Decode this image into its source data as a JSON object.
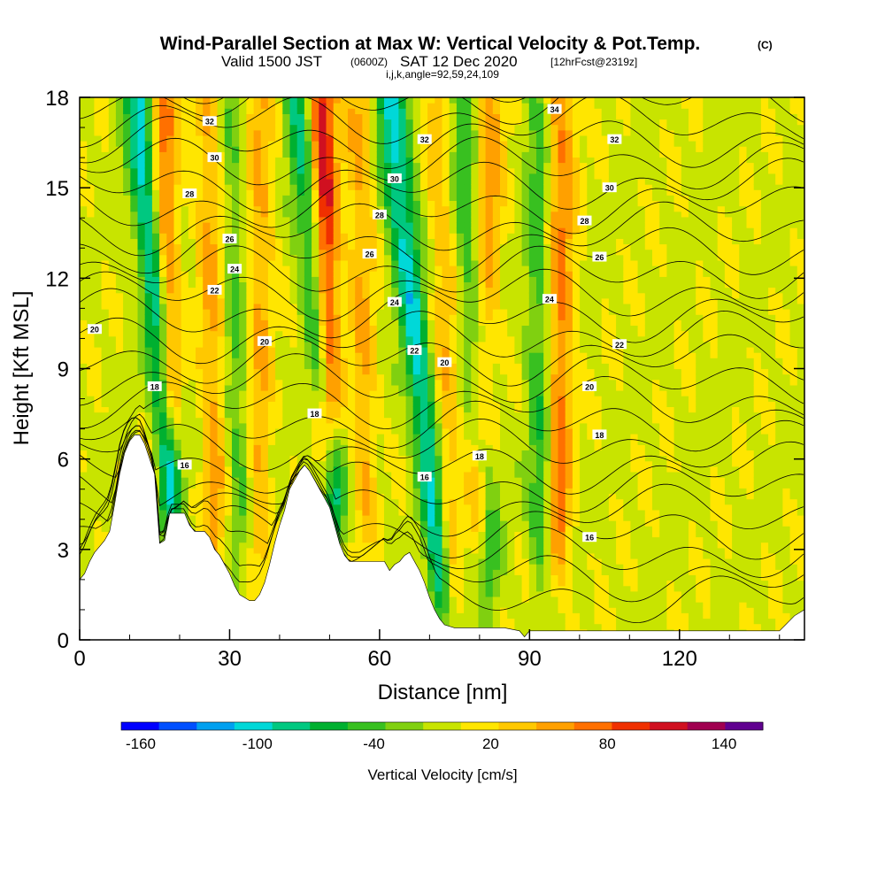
{
  "title": {
    "main": "Wind-Parallel Section at Max W: Vertical Velocity & Pot.Temp.",
    "main_suffix": "(C)",
    "valid_prefix": "Valid 1500 JST",
    "valid_utc": "(0600Z)",
    "valid_date": "SAT 12 Dec 2020",
    "forecast_info": "[12hrFcst@2319z]",
    "indices": "i,j,k,angle=92,59,24,109"
  },
  "chart_data": {
    "type": "heatmap",
    "xlabel": "Distance [nm]",
    "ylabel": "Height [Kft MSL]",
    "xlim": [
      0,
      145
    ],
    "ylim": [
      0,
      18
    ],
    "x_ticks": [
      0,
      30,
      60,
      90,
      120
    ],
    "y_ticks": [
      0,
      3,
      6,
      9,
      12,
      15,
      18
    ],
    "colorbar": {
      "title": "Vertical Velocity [cm/s]",
      "tick_labels": [
        "-160",
        "-100",
        "-40",
        "20",
        "80",
        "140"
      ],
      "tick_values": [
        -160,
        -100,
        -40,
        20,
        80,
        140
      ],
      "range": [
        -170,
        160
      ],
      "colors": [
        "#0000ff",
        "#0050ff",
        "#00a0f0",
        "#00d8d8",
        "#00c880",
        "#00b030",
        "#38c020",
        "#80d010",
        "#c8e400",
        "#ffe600",
        "#ffc800",
        "#ffa000",
        "#ff7000",
        "#f03000",
        "#d01020",
        "#a00050",
        "#600090"
      ]
    },
    "updrafts": [
      {
        "x": 16,
        "x0": 18,
        "y0": 8.5,
        "peak": 90
      },
      {
        "x": 48,
        "x0": 50,
        "y0": 8.0,
        "peak": 130
      },
      {
        "x": 36,
        "x0": 36,
        "y0": 4.0,
        "peak": 45
      },
      {
        "x": 82,
        "x0": 80,
        "y0": 5.0,
        "peak": 60
      },
      {
        "x": 96,
        "x0": 96,
        "y0": 4.0,
        "peak": 70
      },
      {
        "x": 26,
        "x0": 27,
        "y0": 4.0,
        "peak": 50
      },
      {
        "x": 56,
        "x0": 57,
        "y0": 5.0,
        "peak": 45
      },
      {
        "x": 72,
        "x0": 74,
        "y0": 3.0,
        "peak": 40
      }
    ],
    "downdrafts": [
      {
        "x": 12,
        "x0": 18,
        "y0": 5.5,
        "peak": -110
      },
      {
        "x": 44,
        "x0": 51,
        "y0": 5.0,
        "peak": -90
      },
      {
        "x": 62,
        "x0": 72,
        "y0": 2.5,
        "peak": -100
      },
      {
        "x": 92,
        "x0": 92,
        "y0": 4.0,
        "peak": -50
      },
      {
        "x": 30,
        "x0": 32,
        "y0": 5.0,
        "peak": -40
      },
      {
        "x": 76,
        "x0": 82,
        "y0": 3.0,
        "peak": -55
      }
    ],
    "terrain": [
      [
        0,
        2.0
      ],
      [
        1,
        2.2
      ],
      [
        2,
        2.6
      ],
      [
        3,
        2.9
      ],
      [
        4,
        3.1
      ],
      [
        5,
        3.3
      ],
      [
        6,
        3.6
      ],
      [
        7,
        4.5
      ],
      [
        8,
        5.5
      ],
      [
        9,
        6.2
      ],
      [
        10,
        6.6
      ],
      [
        11,
        6.8
      ],
      [
        12,
        6.8
      ],
      [
        13,
        6.5
      ],
      [
        14,
        6.0
      ],
      [
        15,
        5.5
      ],
      [
        16,
        3.2
      ],
      [
        17,
        3.3
      ],
      [
        18,
        4.2
      ],
      [
        19,
        4.2
      ],
      [
        20,
        4.2
      ],
      [
        21,
        4.2
      ],
      [
        22,
        3.8
      ],
      [
        23,
        3.6
      ],
      [
        24,
        3.6
      ],
      [
        25,
        3.6
      ],
      [
        26,
        3.4
      ],
      [
        27,
        3.0
      ],
      [
        28,
        2.8
      ],
      [
        29,
        2.5
      ],
      [
        30,
        2.2
      ],
      [
        31,
        1.8
      ],
      [
        32,
        1.5
      ],
      [
        33,
        1.4
      ],
      [
        34,
        1.3
      ],
      [
        35,
        1.3
      ],
      [
        36,
        1.5
      ],
      [
        37,
        1.9
      ],
      [
        38,
        2.5
      ],
      [
        39,
        3.2
      ],
      [
        40,
        3.8
      ],
      [
        41,
        4.3
      ],
      [
        42,
        5.0
      ],
      [
        43,
        5.3
      ],
      [
        44,
        5.6
      ],
      [
        45,
        5.8
      ],
      [
        46,
        5.6
      ],
      [
        47,
        5.3
      ],
      [
        48,
        5.0
      ],
      [
        49,
        4.7
      ],
      [
        50,
        4.4
      ],
      [
        51,
        3.8
      ],
      [
        52,
        3.2
      ],
      [
        53,
        2.8
      ],
      [
        54,
        2.6
      ],
      [
        55,
        2.6
      ],
      [
        56,
        2.6
      ],
      [
        57,
        2.6
      ],
      [
        58,
        2.6
      ],
      [
        59,
        2.6
      ],
      [
        60,
        2.6
      ],
      [
        61,
        2.6
      ],
      [
        62,
        2.3
      ],
      [
        63,
        2.5
      ],
      [
        64,
        2.6
      ],
      [
        65,
        2.8
      ],
      [
        66,
        2.9
      ],
      [
        67,
        2.6
      ],
      [
        68,
        2.3
      ],
      [
        69,
        1.9
      ],
      [
        70,
        1.4
      ],
      [
        71,
        1.0
      ],
      [
        72,
        0.7
      ],
      [
        73,
        0.5
      ],
      [
        75,
        0.4
      ],
      [
        80,
        0.4
      ],
      [
        85,
        0.4
      ],
      [
        88,
        0.3
      ],
      [
        89,
        0.1
      ],
      [
        90,
        0.3
      ],
      [
        95,
        0.3
      ],
      [
        100,
        0.3
      ],
      [
        110,
        0.3
      ],
      [
        120,
        0.3
      ],
      [
        130,
        0.3
      ],
      [
        140,
        0.3
      ],
      [
        143,
        0.8
      ],
      [
        145,
        1.0
      ]
    ],
    "theta_levels": [
      16,
      18,
      20,
      22,
      24,
      26,
      28,
      30,
      32,
      34
    ],
    "contour_labels": [
      {
        "text": "32",
        "x": 26,
        "y": 17.2
      },
      {
        "text": "30",
        "x": 27,
        "y": 16.0
      },
      {
        "text": "28",
        "x": 22,
        "y": 14.8
      },
      {
        "text": "26",
        "x": 30,
        "y": 13.3
      },
      {
        "text": "24",
        "x": 31,
        "y": 12.3
      },
      {
        "text": "22",
        "x": 27,
        "y": 11.6
      },
      {
        "text": "20",
        "x": 3,
        "y": 10.3
      },
      {
        "text": "20",
        "x": 37,
        "y": 9.9
      },
      {
        "text": "18",
        "x": 15,
        "y": 8.4
      },
      {
        "text": "16",
        "x": 21,
        "y": 5.8
      },
      {
        "text": "18",
        "x": 47,
        "y": 7.5
      },
      {
        "text": "34",
        "x": 95,
        "y": 17.6
      },
      {
        "text": "32",
        "x": 69,
        "y": 16.6
      },
      {
        "text": "32",
        "x": 107,
        "y": 16.6
      },
      {
        "text": "30",
        "x": 63,
        "y": 15.3
      },
      {
        "text": "30",
        "x": 106,
        "y": 15.0
      },
      {
        "text": "28",
        "x": 60,
        "y": 14.1
      },
      {
        "text": "28",
        "x": 101,
        "y": 13.9
      },
      {
        "text": "26",
        "x": 58,
        "y": 12.8
      },
      {
        "text": "26",
        "x": 104,
        "y": 12.7
      },
      {
        "text": "24",
        "x": 63,
        "y": 11.2
      },
      {
        "text": "24",
        "x": 94,
        "y": 11.3
      },
      {
        "text": "22",
        "x": 67,
        "y": 9.6
      },
      {
        "text": "22",
        "x": 108,
        "y": 9.8
      },
      {
        "text": "20",
        "x": 73,
        "y": 9.2
      },
      {
        "text": "20",
        "x": 102,
        "y": 8.4
      },
      {
        "text": "18",
        "x": 80,
        "y": 6.1
      },
      {
        "text": "18",
        "x": 104,
        "y": 6.8
      },
      {
        "text": "16",
        "x": 69,
        "y": 5.4
      },
      {
        "text": "16",
        "x": 102,
        "y": 3.4
      }
    ]
  }
}
